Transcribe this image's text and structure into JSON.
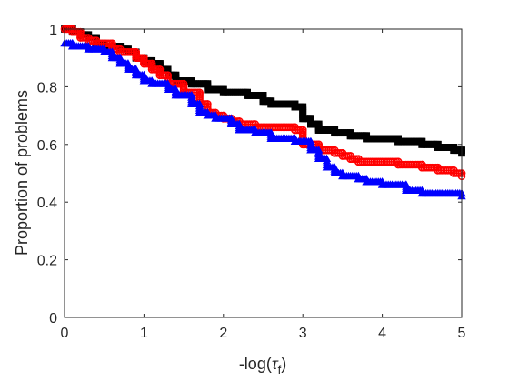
{
  "chart_data": {
    "type": "line",
    "title": "",
    "xlabel_prefix": "-log(",
    "xlabel_symbol": "τ",
    "xlabel_subscript": "f",
    "xlabel_suffix": ")",
    "ylabel": "Proportion of problems",
    "xlim": [
      0,
      5
    ],
    "ylim": [
      0,
      1
    ],
    "xticks": [
      0,
      1,
      2,
      3,
      4,
      5
    ],
    "yticks": [
      0,
      0.2,
      0.4,
      0.6,
      0.8,
      1
    ],
    "xtick_labels": [
      "0",
      "1",
      "2",
      "3",
      "4",
      "5"
    ],
    "ytick_labels": [
      "0",
      "0.2",
      "0.4",
      "0.6",
      "0.8",
      "1"
    ],
    "grid": false,
    "series": [
      {
        "color": "#000000",
        "marker": "square",
        "points": [
          [
            0,
            1.0
          ],
          [
            0.1,
            0.99
          ],
          [
            0.2,
            0.98
          ],
          [
            0.3,
            0.97
          ],
          [
            0.4,
            0.95
          ],
          [
            0.5,
            0.94
          ],
          [
            0.7,
            0.93
          ],
          [
            0.8,
            0.92
          ],
          [
            0.9,
            0.9
          ],
          [
            1.0,
            0.89
          ],
          [
            1.1,
            0.88
          ],
          [
            1.2,
            0.86
          ],
          [
            1.3,
            0.84
          ],
          [
            1.4,
            0.82
          ],
          [
            1.6,
            0.81
          ],
          [
            1.8,
            0.79
          ],
          [
            2.0,
            0.78
          ],
          [
            2.3,
            0.77
          ],
          [
            2.5,
            0.75
          ],
          [
            2.6,
            0.74
          ],
          [
            2.9,
            0.73
          ],
          [
            3.0,
            0.69
          ],
          [
            3.1,
            0.67
          ],
          [
            3.2,
            0.65
          ],
          [
            3.4,
            0.64
          ],
          [
            3.6,
            0.63
          ],
          [
            3.8,
            0.62
          ],
          [
            4.2,
            0.61
          ],
          [
            4.5,
            0.6
          ],
          [
            4.7,
            0.59
          ],
          [
            4.9,
            0.58
          ],
          [
            5.0,
            0.57
          ]
        ]
      },
      {
        "color": "#ff0000",
        "marker": "circle",
        "points": [
          [
            0,
            1.0
          ],
          [
            0.1,
            0.99
          ],
          [
            0.2,
            0.97
          ],
          [
            0.3,
            0.96
          ],
          [
            0.4,
            0.95
          ],
          [
            0.6,
            0.93
          ],
          [
            0.7,
            0.92
          ],
          [
            0.9,
            0.9
          ],
          [
            1.0,
            0.88
          ],
          [
            1.1,
            0.86
          ],
          [
            1.2,
            0.84
          ],
          [
            1.3,
            0.81
          ],
          [
            1.5,
            0.78
          ],
          [
            1.7,
            0.74
          ],
          [
            1.8,
            0.71
          ],
          [
            1.9,
            0.7
          ],
          [
            2.0,
            0.69
          ],
          [
            2.1,
            0.68
          ],
          [
            2.2,
            0.67
          ],
          [
            2.4,
            0.66
          ],
          [
            2.9,
            0.65
          ],
          [
            3.0,
            0.6
          ],
          [
            3.2,
            0.58
          ],
          [
            3.4,
            0.57
          ],
          [
            3.5,
            0.56
          ],
          [
            3.6,
            0.55
          ],
          [
            3.7,
            0.54
          ],
          [
            4.2,
            0.53
          ],
          [
            4.5,
            0.52
          ],
          [
            4.7,
            0.51
          ],
          [
            4.9,
            0.5
          ],
          [
            5.0,
            0.49
          ]
        ]
      },
      {
        "color": "#0000ff",
        "marker": "triangle",
        "points": [
          [
            0,
            0.95
          ],
          [
            0.1,
            0.94
          ],
          [
            0.3,
            0.93
          ],
          [
            0.5,
            0.92
          ],
          [
            0.6,
            0.9
          ],
          [
            0.7,
            0.88
          ],
          [
            0.8,
            0.86
          ],
          [
            0.9,
            0.84
          ],
          [
            1.0,
            0.82
          ],
          [
            1.1,
            0.81
          ],
          [
            1.3,
            0.79
          ],
          [
            1.4,
            0.77
          ],
          [
            1.6,
            0.74
          ],
          [
            1.7,
            0.71
          ],
          [
            1.8,
            0.7
          ],
          [
            1.9,
            0.69
          ],
          [
            2.1,
            0.67
          ],
          [
            2.2,
            0.65
          ],
          [
            2.4,
            0.64
          ],
          [
            2.6,
            0.62
          ],
          [
            2.9,
            0.61
          ],
          [
            3.1,
            0.58
          ],
          [
            3.2,
            0.55
          ],
          [
            3.3,
            0.52
          ],
          [
            3.4,
            0.5
          ],
          [
            3.5,
            0.49
          ],
          [
            3.7,
            0.48
          ],
          [
            3.8,
            0.47
          ],
          [
            4.0,
            0.46
          ],
          [
            4.3,
            0.44
          ],
          [
            4.5,
            0.43
          ],
          [
            5.0,
            0.42
          ]
        ]
      }
    ]
  }
}
